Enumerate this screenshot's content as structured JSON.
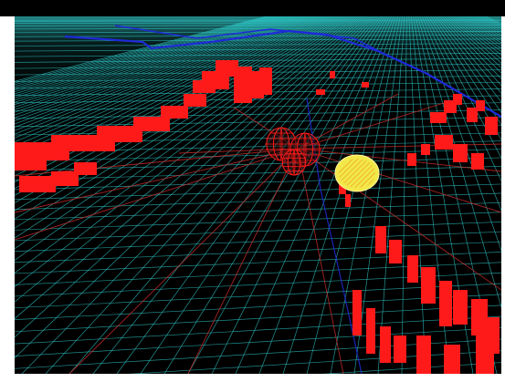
{
  "scene": {
    "background_color": "#000000",
    "grid_color": "#2fc7c7",
    "route_color": "#1f2ad8",
    "obstacle_color": "#ff1a1a",
    "ray_color": "#c42a2a",
    "robot_color": "#2b0b0b",
    "target_color": "#f2e84a",
    "target_hatch_color": "#f09a1a",
    "icons": {
      "robot": "robot-sphere-icon",
      "target": "target-sphere-icon"
    }
  }
}
